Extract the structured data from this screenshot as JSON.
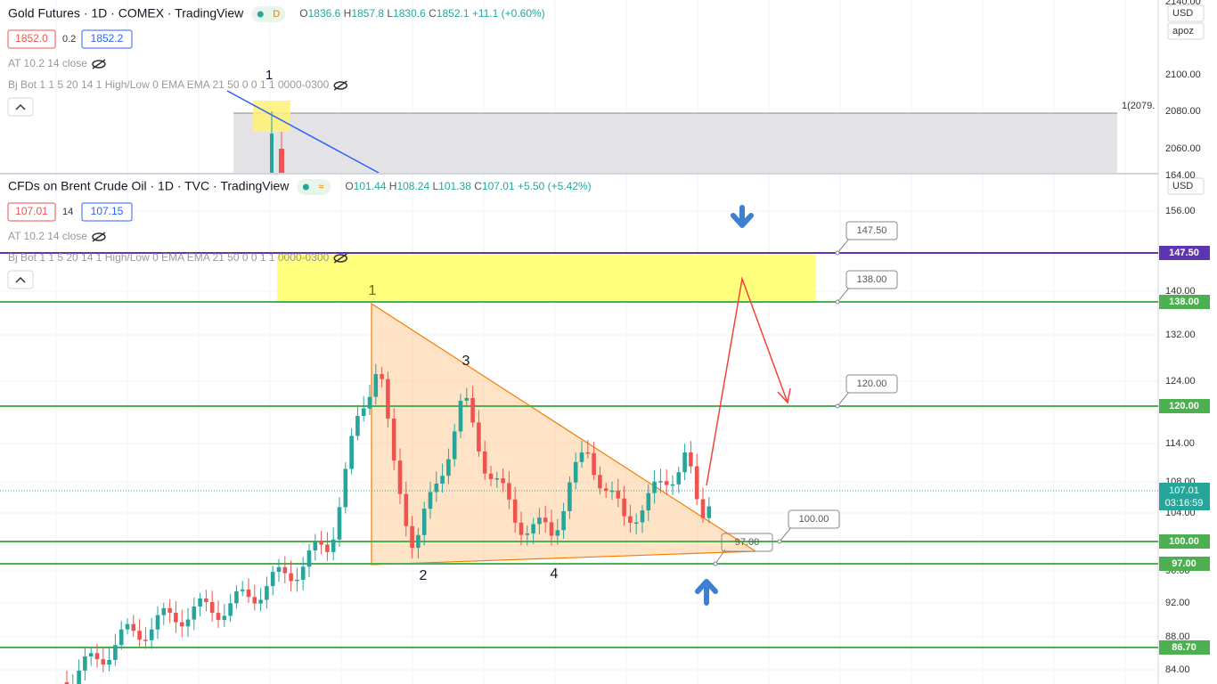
{
  "gold": {
    "title": "Gold Futures · 1D · COMEX · TradingView",
    "badge": "D",
    "ohlc": [
      {
        "label": "O",
        "value": "1836.6"
      },
      {
        "label": "H",
        "value": "1857.8"
      },
      {
        "label": "L",
        "value": "1830.6"
      },
      {
        "label": "C",
        "value": "1852.1"
      }
    ],
    "change": "+11.1 (+0.60%)",
    "bid": "1852.0",
    "spread": "0.2",
    "ask": "1852.2",
    "indicators": [
      "AT 10.2 14 close",
      "Bj Bot 1 1 5 20 14 1 High/Low 0 EMA EMA 21 50 0 0 1 1 0000-0300"
    ],
    "wave_label": "1",
    "line_label": "1(2079.",
    "axis": [
      "2140.00",
      "2100.00",
      "2080.00",
      "2060.00"
    ],
    "currency": "USD",
    "scale": "apoz"
  },
  "brent": {
    "title": "CFDs on Brent Crude Oil · 1D · TVC · TradingView",
    "badge": "≈",
    "ohlc": [
      {
        "label": "O",
        "value": "101.44"
      },
      {
        "label": "H",
        "value": "108.24"
      },
      {
        "label": "L",
        "value": "101.38"
      },
      {
        "label": "C",
        "value": "107.01"
      }
    ],
    "change": "+5.50 (+5.42%)",
    "bid": "107.01",
    "spread": "14",
    "ask": "107.15",
    "indicators": [
      "AT 10.2 14 close",
      "Bj Bot 1 1 5 20 14 1 High/Low 0 EMA EMA 21 50 0 0 1 1 0000-0300"
    ],
    "currency": "USD",
    "axis": [
      "164.00",
      "156.00",
      "140.00",
      "132.00",
      "124.00",
      "114.00",
      "108.00",
      "104.00",
      "96.00",
      "92.00",
      "88.00",
      "84.00"
    ],
    "wave_labels": [
      "1",
      "2",
      "3",
      "4"
    ],
    "callouts": [
      "147.50",
      "138.00",
      "120.00",
      "100.00",
      "97.00"
    ],
    "level_badges": [
      "147.50",
      "138.00",
      "120.00",
      "100.00",
      "97.00",
      "86.70"
    ],
    "price_badge": "107.01",
    "countdown": "03:16:59"
  }
}
